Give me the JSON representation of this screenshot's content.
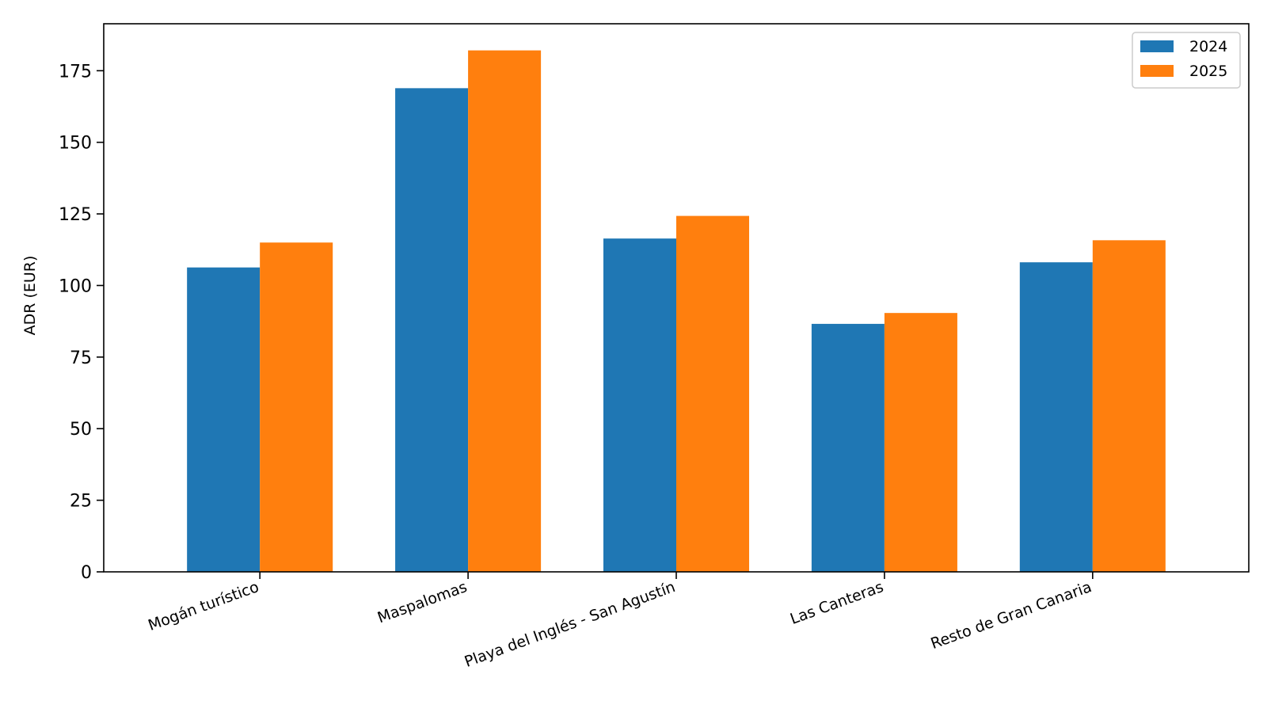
{
  "chart_data": {
    "type": "bar",
    "title": "",
    "xlabel": "",
    "ylabel": "ADR (EUR)",
    "categories": [
      "Mogán turístico",
      "Maspalomas",
      "Playa del Inglés - San Agustín",
      "Las Canteras",
      "Resto de Gran Canaria"
    ],
    "series": [
      {
        "name": "2024",
        "color": "#1f77b4",
        "values": [
          106.3,
          168.9,
          116.4,
          86.6,
          108.1
        ]
      },
      {
        "name": "2025",
        "color": "#ff7f0e",
        "values": [
          115.0,
          182.1,
          124.3,
          90.4,
          115.8
        ]
      }
    ],
    "ylim": [
      0,
      191.4
    ],
    "yticks": [
      0,
      25,
      50,
      75,
      100,
      125,
      150,
      175
    ],
    "grid": false,
    "legend_position": "top-right"
  }
}
